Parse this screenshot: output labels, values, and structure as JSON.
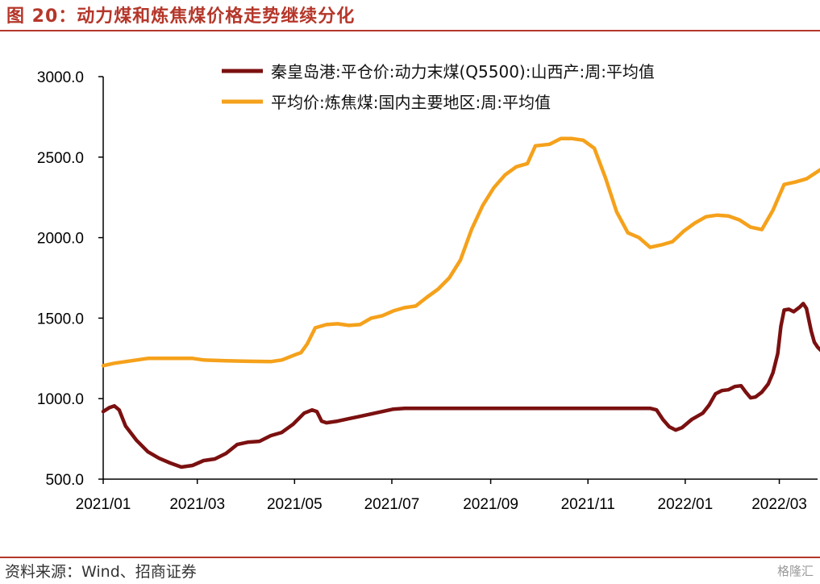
{
  "header": {
    "title": "图 20：动力煤和炼焦煤价格走势继续分化"
  },
  "footer": {
    "source": "资料来源：Wind、招商证券",
    "watermark": "格隆汇"
  },
  "colors": {
    "accent": "#b5372a",
    "series_thermal": "#7b1010",
    "series_coking": "#f5a11b"
  },
  "chart_data": {
    "type": "line",
    "title": "",
    "xlabel": "",
    "ylabel": "",
    "ylim": [
      500,
      3000
    ],
    "yticks": [
      500,
      1000,
      1500,
      2000,
      2500,
      3000
    ],
    "ytick_labels": [
      "500.0",
      "1000.0",
      "1500.0",
      "2000.0",
      "2500.0",
      "3000.0"
    ],
    "xlim": [
      "2021-01-01",
      "2022-03-25"
    ],
    "xticks": [
      "2021-01-01",
      "2021-03-01",
      "2021-05-01",
      "2021-07-01",
      "2021-09-01",
      "2021-11-01",
      "2022-01-01",
      "2022-03-01"
    ],
    "xtick_labels": [
      "2021/01",
      "2021/03",
      "2021/05",
      "2021/07",
      "2021/09",
      "2021/11",
      "2022/01",
      "2022/03"
    ],
    "grid": false,
    "legend_position": "top",
    "series": [
      {
        "name": "秦皇岛港:平仓价:动力末煤(Q5500):山西产:周:平均值",
        "color": "#7b1010",
        "points": [
          [
            "2021-01-01",
            920
          ],
          [
            "2021-01-05",
            945
          ],
          [
            "2021-01-08",
            955
          ],
          [
            "2021-01-11",
            930
          ],
          [
            "2021-01-15",
            830
          ],
          [
            "2021-01-22",
            740
          ],
          [
            "2021-01-29",
            670
          ],
          [
            "2021-02-05",
            630
          ],
          [
            "2021-02-12",
            600
          ],
          [
            "2021-02-19",
            575
          ],
          [
            "2021-02-26",
            585
          ],
          [
            "2021-03-05",
            615
          ],
          [
            "2021-03-12",
            625
          ],
          [
            "2021-03-19",
            660
          ],
          [
            "2021-03-26",
            715
          ],
          [
            "2021-04-02",
            730
          ],
          [
            "2021-04-09",
            735
          ],
          [
            "2021-04-16",
            770
          ],
          [
            "2021-04-23",
            790
          ],
          [
            "2021-04-30",
            840
          ],
          [
            "2021-05-07",
            910
          ],
          [
            "2021-05-12",
            930
          ],
          [
            "2021-05-15",
            920
          ],
          [
            "2021-05-18",
            860
          ],
          [
            "2021-05-21",
            850
          ],
          [
            "2021-05-28",
            860
          ],
          [
            "2021-06-04",
            875
          ],
          [
            "2021-06-11",
            890
          ],
          [
            "2021-06-18",
            905
          ],
          [
            "2021-06-25",
            920
          ],
          [
            "2021-07-02",
            935
          ],
          [
            "2021-07-09",
            940
          ],
          [
            "2021-08-15",
            940
          ],
          [
            "2021-09-15",
            940
          ],
          [
            "2021-10-15",
            940
          ],
          [
            "2021-11-15",
            940
          ],
          [
            "2021-12-10",
            940
          ],
          [
            "2021-12-14",
            930
          ],
          [
            "2021-12-18",
            870
          ],
          [
            "2021-12-22",
            825
          ],
          [
            "2021-12-26",
            805
          ],
          [
            "2021-12-30",
            820
          ],
          [
            "2022-01-05",
            870
          ],
          [
            "2022-01-12",
            910
          ],
          [
            "2022-01-16",
            960
          ],
          [
            "2022-01-20",
            1030
          ],
          [
            "2022-01-24",
            1050
          ],
          [
            "2022-01-28",
            1055
          ],
          [
            "2022-02-01",
            1075
          ],
          [
            "2022-02-05",
            1080
          ],
          [
            "2022-02-08",
            1040
          ],
          [
            "2022-02-11",
            1005
          ],
          [
            "2022-02-14",
            1010
          ],
          [
            "2022-02-18",
            1040
          ],
          [
            "2022-02-22",
            1090
          ],
          [
            "2022-02-25",
            1160
          ],
          [
            "2022-02-28",
            1280
          ],
          [
            "2022-03-02",
            1450
          ],
          [
            "2022-03-04",
            1550
          ],
          [
            "2022-03-07",
            1555
          ],
          [
            "2022-03-10",
            1540
          ],
          [
            "2022-03-14",
            1570
          ],
          [
            "2022-03-16",
            1590
          ],
          [
            "2022-03-18",
            1560
          ],
          [
            "2022-03-21",
            1420
          ],
          [
            "2022-03-23",
            1350
          ],
          [
            "2022-03-25",
            1320
          ],
          [
            "2022-03-28",
            1290
          ]
        ]
      },
      {
        "name": "平均价:炼焦煤:国内主要地区:周:平均值",
        "color": "#f5a11b",
        "points": [
          [
            "2021-01-01",
            1205
          ],
          [
            "2021-01-08",
            1220
          ],
          [
            "2021-01-15",
            1230
          ],
          [
            "2021-01-22",
            1240
          ],
          [
            "2021-01-29",
            1250
          ],
          [
            "2021-02-12",
            1250
          ],
          [
            "2021-02-26",
            1250
          ],
          [
            "2021-03-05",
            1240
          ],
          [
            "2021-03-19",
            1235
          ],
          [
            "2021-04-02",
            1232
          ],
          [
            "2021-04-16",
            1230
          ],
          [
            "2021-04-23",
            1240
          ],
          [
            "2021-05-02",
            1275
          ],
          [
            "2021-05-05",
            1285
          ],
          [
            "2021-05-09",
            1340
          ],
          [
            "2021-05-14",
            1440
          ],
          [
            "2021-05-21",
            1460
          ],
          [
            "2021-05-28",
            1465
          ],
          [
            "2021-06-04",
            1455
          ],
          [
            "2021-06-11",
            1460
          ],
          [
            "2021-06-18",
            1500
          ],
          [
            "2021-06-25",
            1515
          ],
          [
            "2021-07-02",
            1545
          ],
          [
            "2021-07-09",
            1565
          ],
          [
            "2021-07-16",
            1575
          ],
          [
            "2021-07-23",
            1630
          ],
          [
            "2021-07-30",
            1680
          ],
          [
            "2021-08-06",
            1750
          ],
          [
            "2021-08-13",
            1860
          ],
          [
            "2021-08-20",
            2050
          ],
          [
            "2021-08-27",
            2200
          ],
          [
            "2021-09-03",
            2310
          ],
          [
            "2021-09-10",
            2390
          ],
          [
            "2021-09-17",
            2440
          ],
          [
            "2021-09-24",
            2460
          ],
          [
            "2021-09-29",
            2570
          ],
          [
            "2021-10-08",
            2580
          ],
          [
            "2021-10-15",
            2615
          ],
          [
            "2021-10-22",
            2615
          ],
          [
            "2021-10-29",
            2605
          ],
          [
            "2021-11-05",
            2555
          ],
          [
            "2021-11-12",
            2370
          ],
          [
            "2021-11-19",
            2160
          ],
          [
            "2021-11-26",
            2030
          ],
          [
            "2021-12-03",
            2000
          ],
          [
            "2021-12-10",
            1940
          ],
          [
            "2021-12-17",
            1955
          ],
          [
            "2021-12-24",
            1975
          ],
          [
            "2021-12-31",
            2040
          ],
          [
            "2022-01-07",
            2090
          ],
          [
            "2022-01-14",
            2130
          ],
          [
            "2022-01-21",
            2140
          ],
          [
            "2022-01-28",
            2135
          ],
          [
            "2022-02-04",
            2110
          ],
          [
            "2022-02-11",
            2065
          ],
          [
            "2022-02-18",
            2050
          ],
          [
            "2022-02-25",
            2170
          ],
          [
            "2022-03-04",
            2330
          ],
          [
            "2022-03-11",
            2345
          ],
          [
            "2022-03-18",
            2365
          ],
          [
            "2022-03-28",
            2430
          ]
        ]
      }
    ]
  }
}
